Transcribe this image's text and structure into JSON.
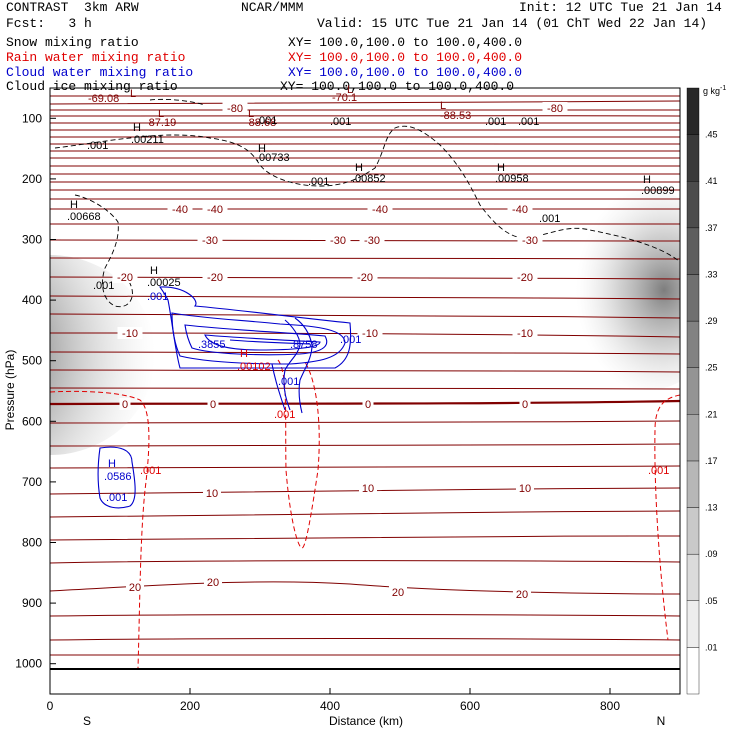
{
  "header": {
    "model": "CONTRAST  3km ARW",
    "org": "NCAR/MMM",
    "init": "Init: 12 UTC Tue 21 Jan 14",
    "fcst": "Fcst:   3 h",
    "valid": "Valid: 15 UTC Tue 21 Jan 14 (01 ChT Wed 22 Jan 14)"
  },
  "legend": [
    {
      "name": "Snow mixing ratio",
      "xy": "XY= 100.0,100.0 to 100.0,400.0",
      "color": "#000000"
    },
    {
      "name": "Rain water mixing ratio",
      "xy": "XY= 100.0,100.0 to 100.0,400.0",
      "color": "#e00000"
    },
    {
      "name": "Cloud water mixing ratio",
      "xy": "XY= 100.0,100.0 to 100.0,400.0",
      "color": "#0000cc"
    },
    {
      "name": "Cloud ice mixing ratio",
      "xy": "XY= 100.0,100.0 to 100.0,400.0",
      "color": "#000000"
    }
  ],
  "chart_data": {
    "type": "contour",
    "xlabel": "Distance (km)",
    "ylabel": "Pressure (hPa)",
    "xlim": [
      0,
      900
    ],
    "ylim": [
      1050,
      50
    ],
    "xticks": [
      0,
      200,
      400,
      600,
      800
    ],
    "yticks": [
      100,
      200,
      300,
      400,
      500,
      600,
      700,
      800,
      900,
      1000
    ],
    "end_labels": {
      "left": "S",
      "right": "N"
    },
    "colorbar": {
      "unit_label": "g kg",
      "unit_exp": "-1",
      "levels": [
        0.01,
        0.05,
        0.09,
        0.13,
        0.17,
        0.21,
        0.25,
        0.29,
        0.33,
        0.37,
        0.41,
        0.45
      ],
      "level_labels": [
        ".01",
        ".05",
        ".09",
        ".13",
        ".17",
        ".21",
        ".25",
        ".29",
        ".33",
        ".37",
        ".41",
        ".45"
      ]
    },
    "temperature_isotherms": [
      {
        "label": "-80",
        "positions": [
          [
            235,
            108
          ],
          [
            555,
            108
          ]
        ]
      },
      {
        "label": "-40",
        "positions": [
          [
            180,
            209
          ],
          [
            215,
            209
          ],
          [
            380,
            209
          ],
          [
            520,
            209
          ]
        ]
      },
      {
        "label": "-30",
        "positions": [
          [
            210,
            240
          ],
          [
            338,
            240
          ],
          [
            372,
            240
          ],
          [
            530,
            240
          ]
        ]
      },
      {
        "label": "-20",
        "positions": [
          [
            125,
            277
          ],
          [
            215,
            277
          ],
          [
            365,
            277
          ],
          [
            525,
            277
          ]
        ]
      },
      {
        "label": "-10",
        "positions": [
          [
            130,
            333
          ],
          [
            370,
            333
          ],
          [
            525,
            333
          ]
        ]
      },
      {
        "label": "0",
        "positions": [
          [
            125,
            404
          ],
          [
            213,
            404
          ],
          [
            368,
            404
          ],
          [
            525,
            404
          ]
        ]
      },
      {
        "label": "10",
        "positions": [
          [
            212,
            493
          ],
          [
            368,
            488
          ],
          [
            525,
            488
          ]
        ]
      },
      {
        "label": "20",
        "positions": [
          [
            135,
            587
          ],
          [
            213,
            582
          ],
          [
            398,
            592
          ],
          [
            522,
            594
          ]
        ]
      }
    ],
    "annotations": [
      {
        "text": "-69.08",
        "x": 88,
        "y": 102,
        "color": "#800000"
      },
      {
        "text": "-87.19",
        "x": 145,
        "y": 126,
        "color": "#800000"
      },
      {
        "text": "-88.68",
        "x": 245,
        "y": 126,
        "color": "#800000"
      },
      {
        "text": "-70.1",
        "x": 332,
        "y": 101,
        "color": "#800000"
      },
      {
        "text": "-88.53",
        "x": 440,
        "y": 119,
        "color": "#800000"
      },
      {
        "text": "L",
        "x": 130,
        "y": 97,
        "color": "#800000"
      },
      {
        "text": "L",
        "x": 158,
        "y": 117,
        "color": "#800000"
      },
      {
        "text": "L",
        "x": 248,
        "y": 117,
        "color": "#800000"
      },
      {
        "text": "L",
        "x": 347,
        "y": 93,
        "color": "#800000"
      },
      {
        "text": "L",
        "x": 440,
        "y": 109,
        "color": "#800000"
      },
      {
        "text": "H",
        "x": 133,
        "y": 131,
        "color": "#000000"
      },
      {
        "text": ".00211",
        "x": 131,
        "y": 143,
        "color": "#000000"
      },
      {
        "text": "H",
        "x": 258,
        "y": 152,
        "color": "#000000"
      },
      {
        "text": ".00733",
        "x": 256,
        "y": 161,
        "color": "#000000"
      },
      {
        "text": "H",
        "x": 355,
        "y": 171,
        "color": "#000000"
      },
      {
        "text": ".00852",
        "x": 352,
        "y": 182,
        "color": "#000000"
      },
      {
        "text": "H",
        "x": 497,
        "y": 171,
        "color": "#000000"
      },
      {
        "text": ".00958",
        "x": 495,
        "y": 182,
        "color": "#000000"
      },
      {
        "text": "H",
        "x": 643,
        "y": 183,
        "color": "#000000"
      },
      {
        "text": ".00899",
        "x": 641,
        "y": 194,
        "color": "#000000"
      },
      {
        "text": "H",
        "x": 70,
        "y": 208,
        "color": "#000000"
      },
      {
        "text": ".00668",
        "x": 67,
        "y": 220,
        "color": "#000000"
      },
      {
        "text": "H",
        "x": 150,
        "y": 274,
        "color": "#000000"
      },
      {
        "text": ".00025",
        "x": 147,
        "y": 286,
        "color": "#000000"
      },
      {
        "text": ".001",
        "x": 87,
        "y": 149,
        "color": "#000000"
      },
      {
        "text": ".001",
        "x": 256,
        "y": 124,
        "color": "#000000"
      },
      {
        "text": ".001",
        "x": 330,
        "y": 125,
        "color": "#000000"
      },
      {
        "text": ".001",
        "x": 308,
        "y": 185,
        "color": "#000000"
      },
      {
        "text": ".001",
        "x": 485,
        "y": 125,
        "color": "#000000"
      },
      {
        "text": ".001",
        "x": 518,
        "y": 125,
        "color": "#000000"
      },
      {
        "text": ".001",
        "x": 539,
        "y": 222,
        "color": "#000000"
      },
      {
        "text": ".001",
        "x": 93,
        "y": 289,
        "color": "#000000"
      },
      {
        "text": ".001",
        "x": 147,
        "y": 300,
        "color": "#0000cc"
      },
      {
        "text": ".3855",
        "x": 198,
        "y": 348,
        "color": "#0000cc"
      },
      {
        "text": ".8758",
        "x": 290,
        "y": 348,
        "color": "#0000cc"
      },
      {
        "text": ".001",
        "x": 340,
        "y": 343,
        "color": "#0000cc"
      },
      {
        "text": ".001",
        "x": 278,
        "y": 385,
        "color": "#0000cc"
      },
      {
        "text": "H",
        "x": 108,
        "y": 467,
        "color": "#0000cc"
      },
      {
        "text": ".0586",
        "x": 104,
        "y": 480,
        "color": "#0000cc"
      },
      {
        "text": ".001",
        "x": 106,
        "y": 501,
        "color": "#0000cc"
      },
      {
        "text": "H",
        "x": 240,
        "y": 357,
        "color": "#e00000"
      },
      {
        "text": ".00102",
        "x": 237,
        "y": 370,
        "color": "#e00000"
      },
      {
        "text": ".001",
        "x": 274,
        "y": 418,
        "color": "#e00000"
      },
      {
        "text": ".001",
        "x": 140,
        "y": 474,
        "color": "#e00000"
      },
      {
        "text": ".001",
        "x": 648,
        "y": 474,
        "color": "#e00000"
      }
    ]
  }
}
